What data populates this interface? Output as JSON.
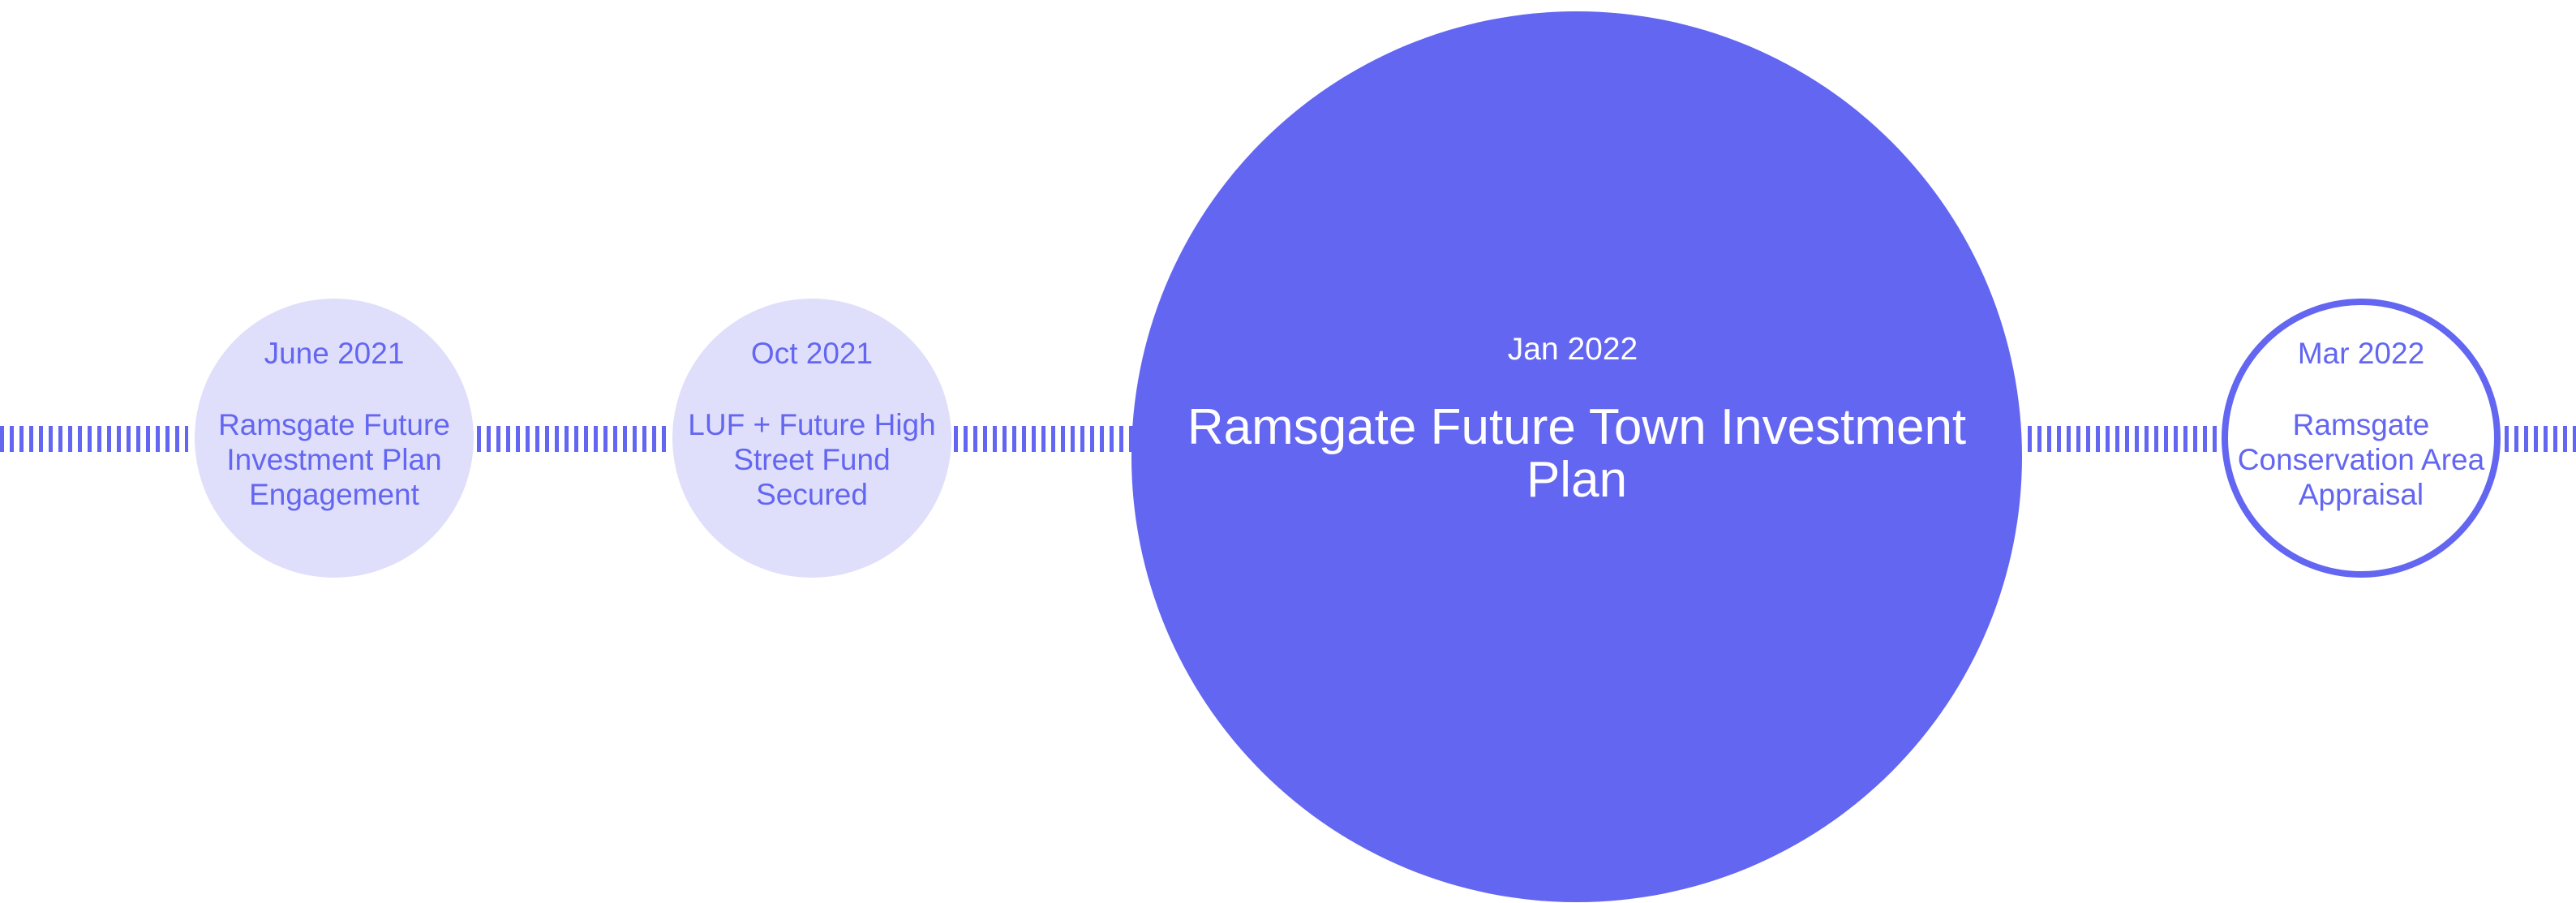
{
  "colors": {
    "accent": "#6366f1",
    "light_fill": "#e0dffb",
    "background": "#ffffff",
    "big_text": "#ffffff"
  },
  "timeline": {
    "events": [
      {
        "date": "June 2021",
        "title": "Ramsgate Future Investment Plan Engagement",
        "style": "light-filled"
      },
      {
        "date": "Oct 2021",
        "title": "LUF + Future High Street Fund Secured",
        "style": "light-filled"
      },
      {
        "date": "Jan 2022",
        "title": "Ramsgate Future Town Investment Plan",
        "style": "highlighted"
      },
      {
        "date": "Mar 2022",
        "title": "Ramsgate Conservation Area Appraisal",
        "style": "outlined"
      }
    ]
  }
}
